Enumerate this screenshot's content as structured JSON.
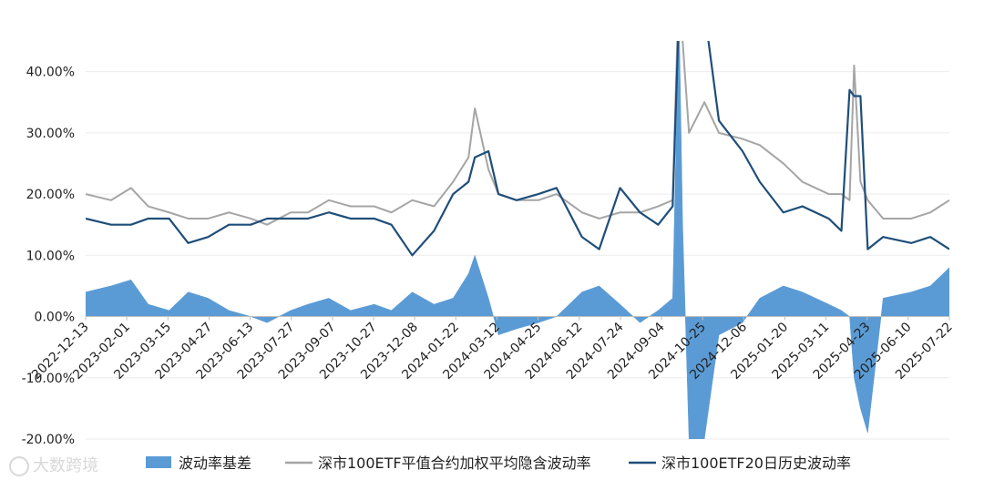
{
  "watermark": "大数跨境",
  "chart_data": {
    "type": "line",
    "y_format": "percent",
    "ylim": [
      -0.2,
      0.45
    ],
    "yticks": [
      0.4,
      0.3,
      0.2,
      0.1,
      0.0,
      -0.1,
      -0.2
    ],
    "ytick_labels": [
      "40.00%",
      "30.00%",
      "20.00%",
      "10.00%",
      "0.00%",
      "-10.00%",
      "-20.00%"
    ],
    "xlim": [
      "2022-12-13",
      "2025-07-22"
    ],
    "x_tick_labels": [
      "2022-12-13",
      "2023-02-01",
      "2023-03-15",
      "2023-04-27",
      "2023-06-13",
      "2023-07-27",
      "2023-09-07",
      "2023-10-27",
      "2023-12-08",
      "2024-01-22",
      "2024-03-12",
      "2024-04-25",
      "2024-06-12",
      "2024-07-24",
      "2024-09-04",
      "2024-10-25",
      "2024-12-06",
      "2025-01-20",
      "2025-03-11",
      "2025-04-23",
      "2025-06-10",
      "2025-07-22"
    ],
    "legend": {
      "position": "bottom",
      "entries": [
        "波动率基差",
        "深市100ETF平值合约加权平均隐含波动率",
        "深市100ETF20日历史波动率"
      ]
    },
    "colors": {
      "basis": "#5b9bd5",
      "implied": "#a5a5a5",
      "historical": "#1f4e79"
    },
    "series": [
      {
        "name": "波动率基差",
        "kind": "area",
        "x": [
          "2022-12-13",
          "2023-01-10",
          "2023-02-01",
          "2023-02-20",
          "2023-03-15",
          "2023-04-05",
          "2023-04-27",
          "2023-05-20",
          "2023-06-13",
          "2023-07-01",
          "2023-07-27",
          "2023-08-15",
          "2023-09-07",
          "2023-10-01",
          "2023-10-27",
          "2023-11-15",
          "2023-12-08",
          "2024-01-01",
          "2024-01-22",
          "2024-02-08",
          "2024-02-15",
          "2024-03-01",
          "2024-03-12",
          "2024-04-01",
          "2024-04-25",
          "2024-05-15",
          "2024-06-12",
          "2024-07-01",
          "2024-07-24",
          "2024-08-15",
          "2024-09-04",
          "2024-09-20",
          "2024-09-27",
          "2024-10-01",
          "2024-10-08",
          "2024-10-25",
          "2024-11-10",
          "2024-12-06",
          "2024-12-25",
          "2025-01-20",
          "2025-02-10",
          "2025-03-11",
          "2025-03-25",
          "2025-04-03",
          "2025-04-08",
          "2025-04-15",
          "2025-04-23",
          "2025-05-10",
          "2025-06-10",
          "2025-07-01",
          "2025-07-22"
        ],
        "values": [
          0.04,
          0.05,
          0.06,
          0.02,
          0.01,
          0.04,
          0.03,
          0.01,
          0.0,
          -0.01,
          0.01,
          0.02,
          0.03,
          0.01,
          0.02,
          0.01,
          0.04,
          0.02,
          0.03,
          0.07,
          0.1,
          0.03,
          -0.03,
          -0.02,
          -0.01,
          0.0,
          0.04,
          0.05,
          0.02,
          -0.01,
          0.01,
          0.03,
          0.5,
          0.15,
          -0.2,
          -0.2,
          -0.03,
          -0.01,
          0.03,
          0.05,
          0.04,
          0.02,
          0.01,
          0.0,
          -0.1,
          -0.15,
          -0.19,
          0.03,
          0.04,
          0.05,
          0.08
        ]
      },
      {
        "name": "深市100ETF平值合约加权平均隐含波动率",
        "kind": "line",
        "x": [
          "2022-12-13",
          "2023-01-10",
          "2023-02-01",
          "2023-02-20",
          "2023-03-15",
          "2023-04-05",
          "2023-04-27",
          "2023-05-20",
          "2023-06-13",
          "2023-07-01",
          "2023-07-27",
          "2023-08-15",
          "2023-09-07",
          "2023-10-01",
          "2023-10-27",
          "2023-11-15",
          "2023-12-08",
          "2024-01-01",
          "2024-01-22",
          "2024-02-08",
          "2024-02-15",
          "2024-03-01",
          "2024-03-12",
          "2024-04-01",
          "2024-04-25",
          "2024-05-15",
          "2024-06-12",
          "2024-07-01",
          "2024-07-24",
          "2024-08-15",
          "2024-09-04",
          "2024-09-20",
          "2024-09-27",
          "2024-10-01",
          "2024-10-08",
          "2024-10-25",
          "2024-11-10",
          "2024-12-06",
          "2024-12-25",
          "2025-01-20",
          "2025-02-10",
          "2025-03-11",
          "2025-03-25",
          "2025-04-03",
          "2025-04-08",
          "2025-04-15",
          "2025-04-23",
          "2025-05-10",
          "2025-06-10",
          "2025-07-01",
          "2025-07-22"
        ],
        "values": [
          0.2,
          0.19,
          0.21,
          0.18,
          0.17,
          0.16,
          0.16,
          0.17,
          0.16,
          0.15,
          0.17,
          0.17,
          0.19,
          0.18,
          0.18,
          0.17,
          0.19,
          0.18,
          0.22,
          0.26,
          0.34,
          0.24,
          0.2,
          0.19,
          0.19,
          0.2,
          0.17,
          0.16,
          0.17,
          0.17,
          0.18,
          0.19,
          0.55,
          0.45,
          0.3,
          0.35,
          0.3,
          0.29,
          0.28,
          0.25,
          0.22,
          0.2,
          0.2,
          0.19,
          0.41,
          0.22,
          0.19,
          0.16,
          0.16,
          0.17,
          0.19
        ]
      },
      {
        "name": "深市100ETF20日历史波动率",
        "kind": "line",
        "x": [
          "2022-12-13",
          "2023-01-10",
          "2023-02-01",
          "2023-02-20",
          "2023-03-15",
          "2023-04-05",
          "2023-04-27",
          "2023-05-20",
          "2023-06-13",
          "2023-07-01",
          "2023-07-27",
          "2023-08-15",
          "2023-09-07",
          "2023-10-01",
          "2023-10-27",
          "2023-11-15",
          "2023-12-08",
          "2024-01-01",
          "2024-01-22",
          "2024-02-08",
          "2024-02-15",
          "2024-03-01",
          "2024-03-12",
          "2024-04-01",
          "2024-04-25",
          "2024-05-15",
          "2024-06-12",
          "2024-07-01",
          "2024-07-24",
          "2024-08-15",
          "2024-09-04",
          "2024-09-20",
          "2024-09-27",
          "2024-10-01",
          "2024-10-08",
          "2024-10-25",
          "2024-11-10",
          "2024-12-06",
          "2024-12-25",
          "2025-01-20",
          "2025-02-10",
          "2025-03-11",
          "2025-03-25",
          "2025-04-03",
          "2025-04-08",
          "2025-04-15",
          "2025-04-23",
          "2025-05-10",
          "2025-06-10",
          "2025-07-01",
          "2025-07-22"
        ],
        "values": [
          0.16,
          0.15,
          0.15,
          0.16,
          0.16,
          0.12,
          0.13,
          0.15,
          0.15,
          0.16,
          0.16,
          0.16,
          0.17,
          0.16,
          0.16,
          0.15,
          0.1,
          0.14,
          0.2,
          0.22,
          0.26,
          0.27,
          0.2,
          0.19,
          0.2,
          0.21,
          0.13,
          0.11,
          0.21,
          0.17,
          0.15,
          0.18,
          0.5,
          0.6,
          0.55,
          0.5,
          0.32,
          0.27,
          0.22,
          0.17,
          0.18,
          0.16,
          0.14,
          0.37,
          0.36,
          0.36,
          0.11,
          0.13,
          0.12,
          0.13,
          0.11
        ]
      }
    ]
  }
}
